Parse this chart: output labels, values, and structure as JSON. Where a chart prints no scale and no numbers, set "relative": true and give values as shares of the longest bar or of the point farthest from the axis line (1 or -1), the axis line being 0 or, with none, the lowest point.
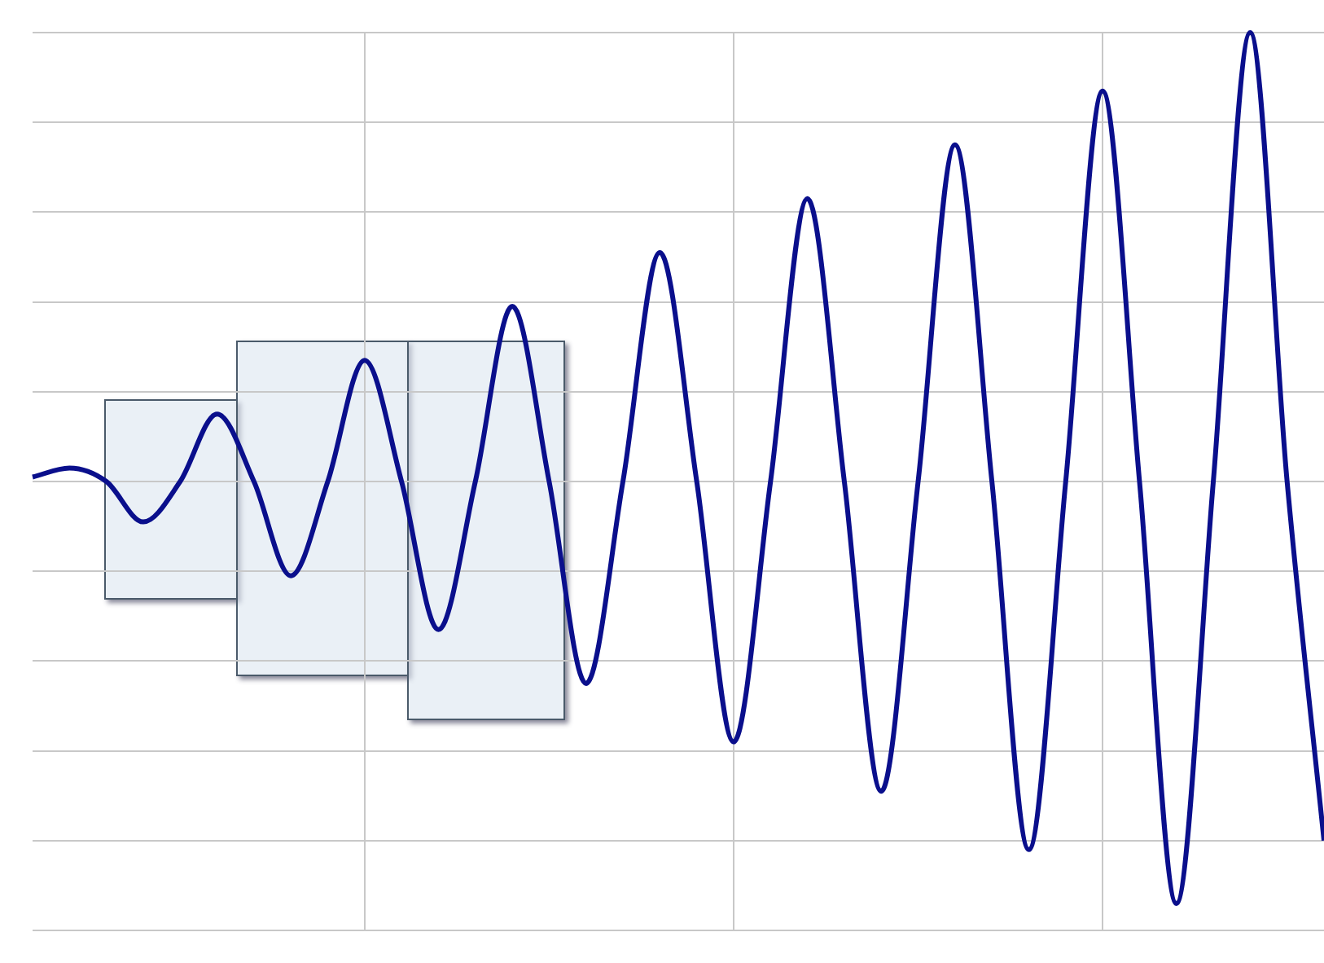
{
  "chart_data": {
    "type": "line",
    "relative": true,
    "grid": true,
    "line_style": "solid",
    "marker": "none",
    "categories": [
      null,
      null,
      null,
      null,
      null,
      null,
      null,
      null,
      null,
      null,
      null,
      null,
      null,
      null,
      null,
      null,
      null,
      null,
      null,
      null,
      null,
      null,
      null,
      null,
      null,
      null,
      null,
      null,
      null,
      null,
      null,
      null,
      null,
      null,
      null,
      null
    ],
    "series": [
      {
        "color": "#0a0f8c",
        "values": [
          0.01,
          0.03,
          0,
          -0.09,
          0,
          0.15,
          0,
          -0.21,
          0,
          0.27,
          0,
          -0.33,
          0,
          0.39,
          0,
          -0.45,
          0,
          0.51,
          0,
          -0.58,
          0,
          0.63,
          0,
          -0.69,
          0,
          0.75,
          0,
          -0.82,
          0,
          0.87,
          0,
          -0.94,
          0,
          1,
          0,
          -0.8
        ]
      }
    ]
  }
}
